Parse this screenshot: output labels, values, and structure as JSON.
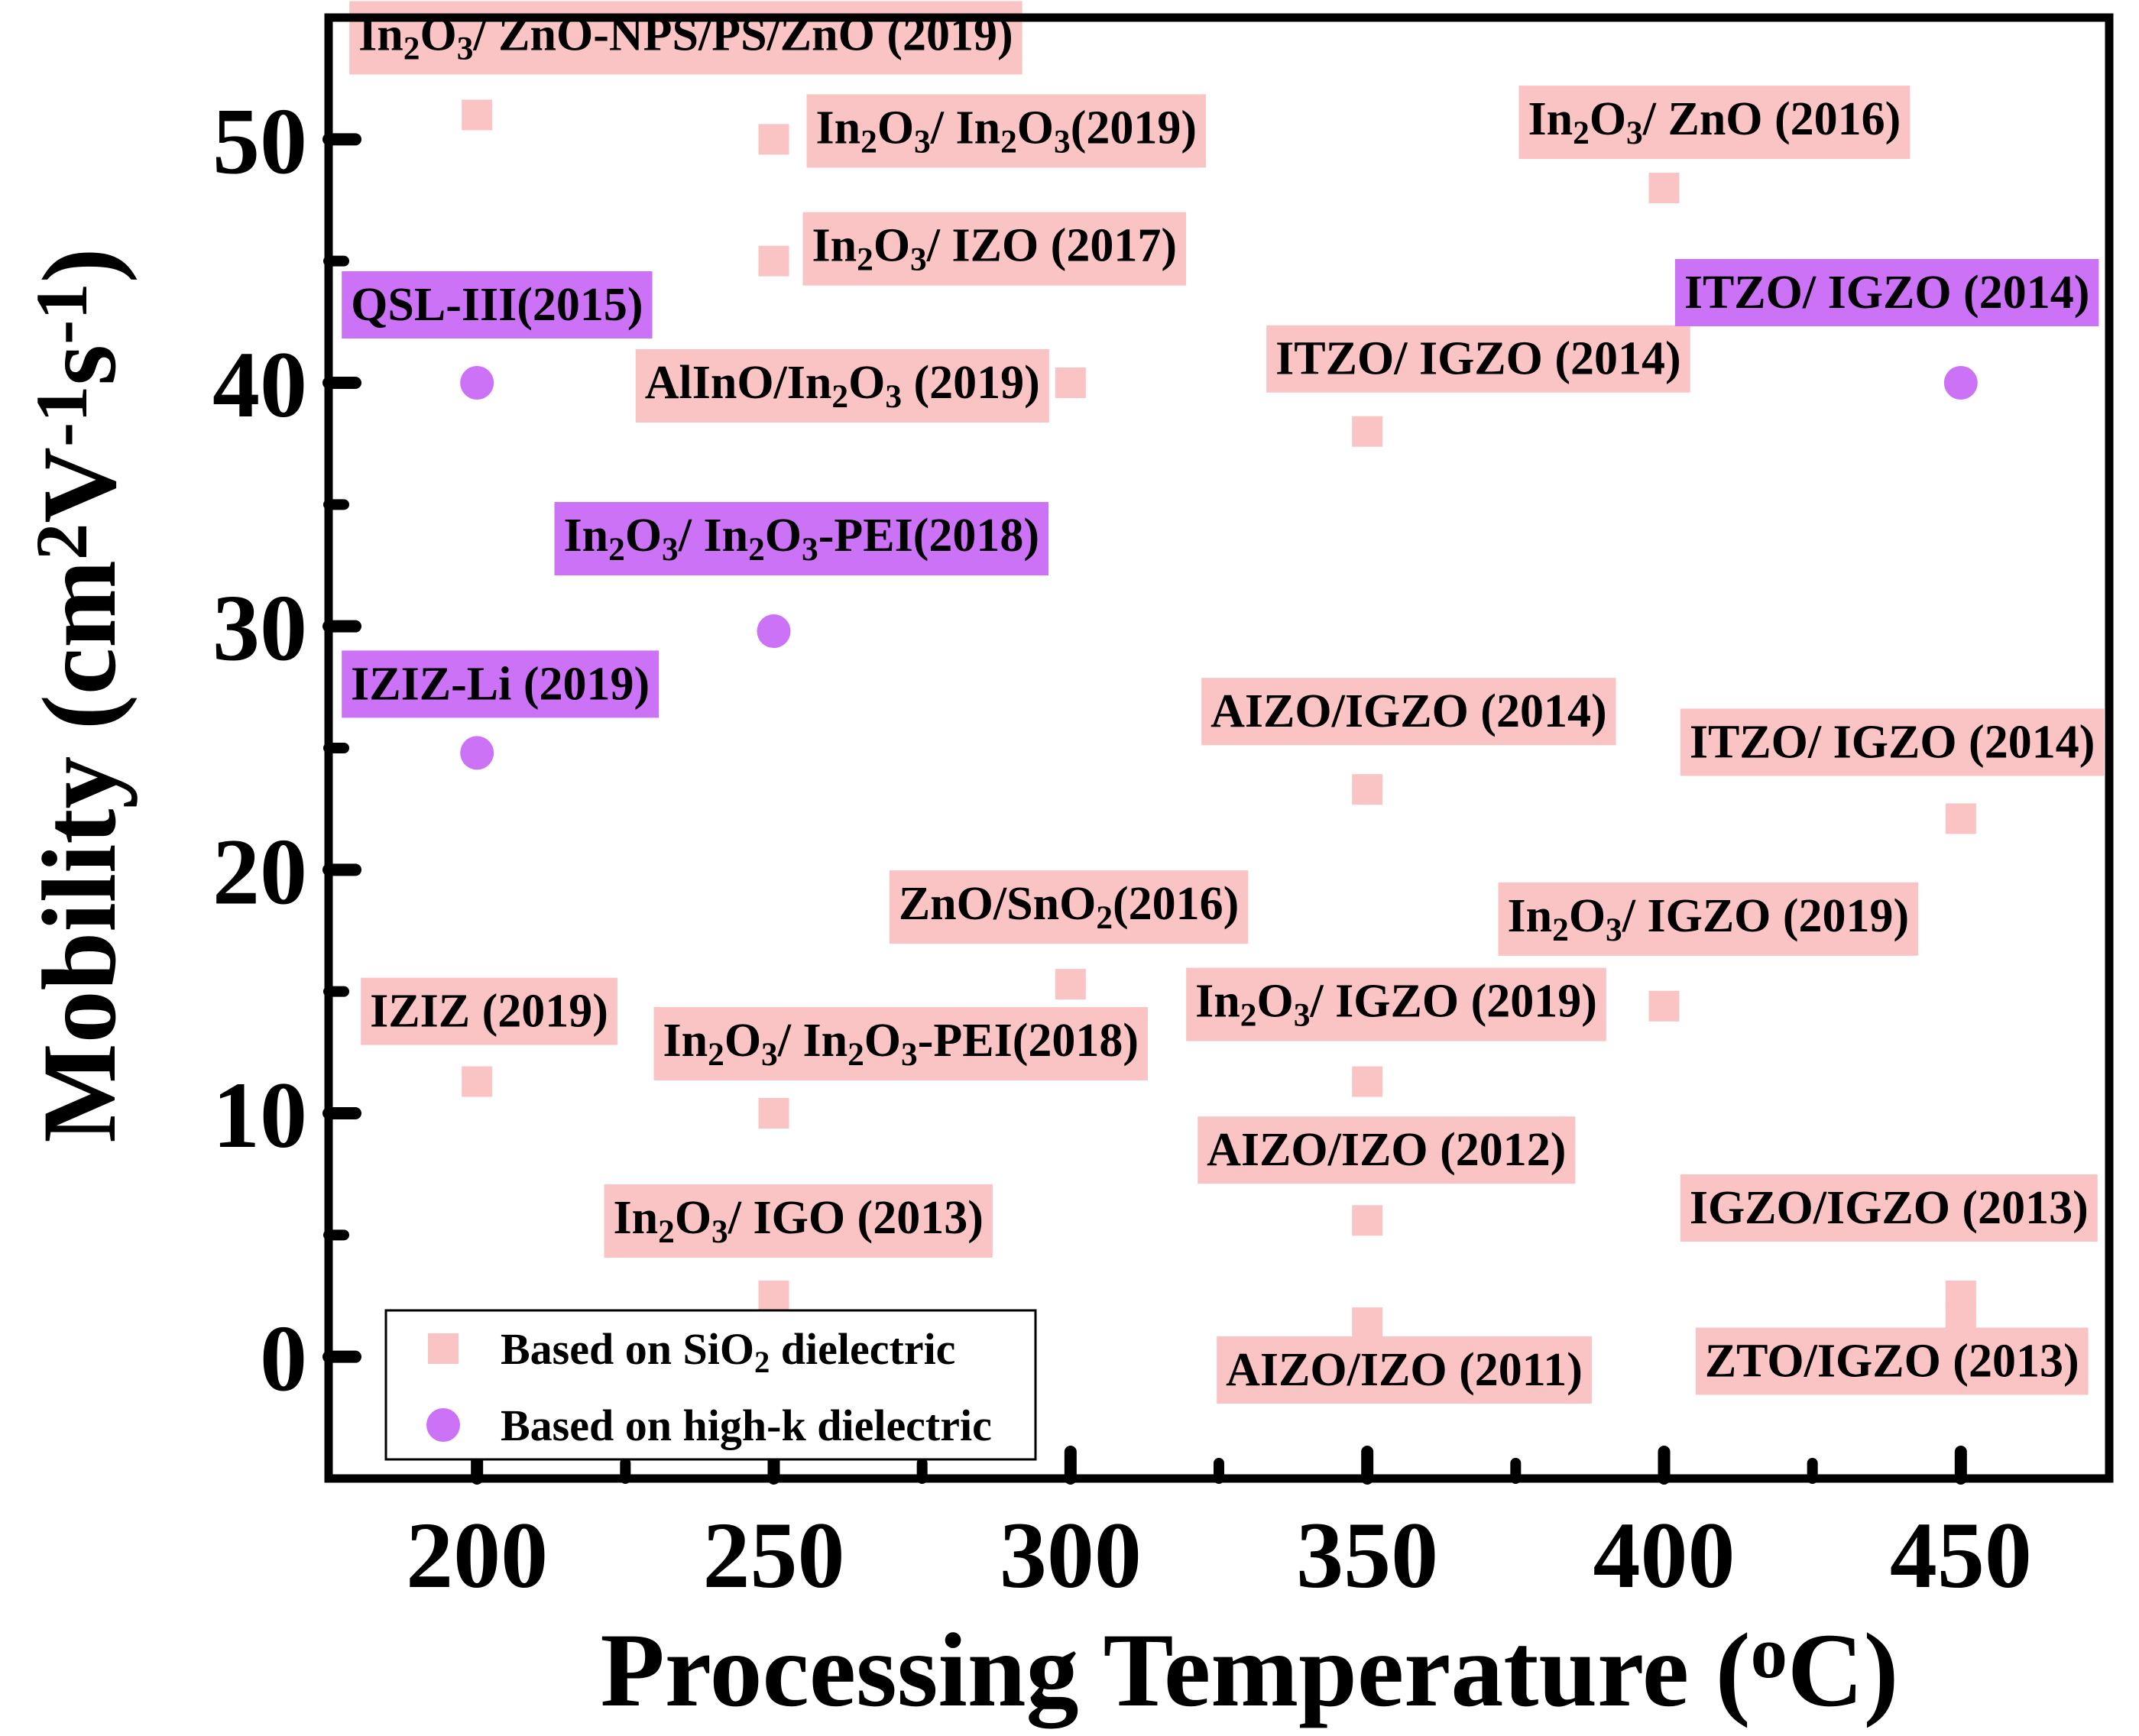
{
  "colors": {
    "sio2": "#fac4c4",
    "highk": "#cb72f6",
    "sio2_label_bg": "#fac4c4",
    "highk_label_bg": "#cb72f6"
  },
  "chart_data": {
    "type": "scatter",
    "xlabel": "Processing Temperature (oC)",
    "xlabel_parts": {
      "main": "Processing Temperature (",
      "sup": "o",
      "end": "C)"
    },
    "ylabel": "Mobility (cm2V-1s-1)",
    "ylabel_parts": [
      {
        "t": "Mobility (cm",
        "sup": false
      },
      {
        "t": "2",
        "sup": true
      },
      {
        "t": "V",
        "sup": false
      },
      {
        "t": "-1",
        "sup": true
      },
      {
        "t": "s",
        "sup": false
      },
      {
        "t": "-1",
        "sup": true
      },
      {
        "t": ")",
        "sup": false
      }
    ],
    "xlim": [
      175,
      475
    ],
    "ylim": [
      -5,
      55
    ],
    "x_ticks": [
      200,
      250,
      300,
      350,
      400,
      450
    ],
    "x_minor_ticks": [
      225,
      275,
      325,
      375,
      425
    ],
    "y_ticks": [
      0,
      10,
      20,
      30,
      40,
      50
    ],
    "y_minor_ticks": [
      5,
      15,
      25,
      35,
      45
    ],
    "legend": {
      "position": "bottom-left",
      "entries": [
        {
          "series": "sio2",
          "marker": "square",
          "parts": [
            {
              "t": "Based on SiO",
              "s": "n"
            },
            {
              "t": "2",
              "s": "sub"
            },
            {
              "t": " dielectric",
              "s": "n"
            }
          ]
        },
        {
          "series": "highk",
          "marker": "circle",
          "parts": [
            {
              "t": "Based on high-k dielectric",
              "s": "n"
            }
          ]
        }
      ]
    },
    "series": [
      {
        "name": "Based on SiO2 dielectric",
        "key": "sio2",
        "marker": "square",
        "points": [
          {
            "x": 200,
            "y": 51,
            "label": "In2O3/ ZnO-NPS/PS/ZnO (2019)",
            "parts": [
              {
                "t": "In",
                "s": "n"
              },
              {
                "t": "2",
                "s": "sub"
              },
              {
                "t": "O",
                "s": "n"
              },
              {
                "t": "3",
                "s": "sub"
              },
              {
                "t": "/ ZnO-NPS/PS/ZnO (2019)",
                "s": "n"
              }
            ]
          },
          {
            "x": 250,
            "y": 50,
            "label": "In2O3/ In2O3(2019)",
            "parts": [
              {
                "t": "In",
                "s": "n"
              },
              {
                "t": "2",
                "s": "sub"
              },
              {
                "t": "O",
                "s": "n"
              },
              {
                "t": "3",
                "s": "sub"
              },
              {
                "t": "/ In",
                "s": "n"
              },
              {
                "t": "2",
                "s": "sub"
              },
              {
                "t": "O",
                "s": "n"
              },
              {
                "t": "3",
                "s": "sub"
              },
              {
                "t": "(2019)",
                "s": "n"
              }
            ]
          },
          {
            "x": 250,
            "y": 45,
            "label": "In2O3/ IZO (2017)",
            "parts": [
              {
                "t": "In",
                "s": "n"
              },
              {
                "t": "2",
                "s": "sub"
              },
              {
                "t": "O",
                "s": "n"
              },
              {
                "t": "3",
                "s": "sub"
              },
              {
                "t": "/ IZO (2017)",
                "s": "n"
              }
            ]
          },
          {
            "x": 300,
            "y": 40,
            "label": "AlInO/In2O3 (2019)",
            "parts": [
              {
                "t": "AlInO/In",
                "s": "n"
              },
              {
                "t": "2",
                "s": "sub"
              },
              {
                "t": "O",
                "s": "n"
              },
              {
                "t": "3",
                "s": "sub"
              },
              {
                "t": " (2019)",
                "s": "n"
              }
            ]
          },
          {
            "x": 400,
            "y": 48,
            "label": "In2O3/ ZnO (2016)",
            "parts": [
              {
                "t": "In",
                "s": "n"
              },
              {
                "t": "2",
                "s": "sub"
              },
              {
                "t": "O",
                "s": "n"
              },
              {
                "t": "3",
                "s": "sub"
              },
              {
                "t": "/ ZnO (2016)",
                "s": "n"
              }
            ]
          },
          {
            "x": 350,
            "y": 38,
            "label": "ITZO/ IGZO (2014)",
            "parts": [
              {
                "t": "ITZO/ IGZO (2014)",
                "s": "n"
              }
            ]
          },
          {
            "x": 350,
            "y": 23.3,
            "label": "AIZO/IGZO (2014)",
            "parts": [
              {
                "t": "AIZO/IGZO (2014)",
                "s": "n"
              }
            ]
          },
          {
            "x": 450,
            "y": 22.1,
            "label": "ITZO/ IGZO (2014)",
            "parts": [
              {
                "t": "ITZO/ IGZO (2014)",
                "s": "n"
              }
            ]
          },
          {
            "x": 300,
            "y": 15.3,
            "label": "ZnO/SnO2(2016)",
            "parts": [
              {
                "t": "ZnO/SnO",
                "s": "n"
              },
              {
                "t": "2",
                "s": "sub"
              },
              {
                "t": "(2016)",
                "s": "n"
              }
            ]
          },
          {
            "x": 400,
            "y": 14.4,
            "label": "In2O3/ IGZO (2019)",
            "parts": [
              {
                "t": "In",
                "s": "n"
              },
              {
                "t": "2",
                "s": "sub"
              },
              {
                "t": "O",
                "s": "n"
              },
              {
                "t": "3",
                "s": "sub"
              },
              {
                "t": "/ IGZO (2019)",
                "s": "n"
              }
            ]
          },
          {
            "x": 350,
            "y": 11.3,
            "label": "In2O3/ IGZO (2019)",
            "parts": [
              {
                "t": "In",
                "s": "n"
              },
              {
                "t": "2",
                "s": "sub"
              },
              {
                "t": "O",
                "s": "n"
              },
              {
                "t": "3",
                "s": "sub"
              },
              {
                "t": "/ IGZO (2019)",
                "s": "n"
              }
            ]
          },
          {
            "x": 200,
            "y": 11.3,
            "label": "IZIZ (2019)",
            "parts": [
              {
                "t": "IZIZ (2019)",
                "s": "n"
              }
            ]
          },
          {
            "x": 250,
            "y": 10,
            "label": "In2O3/ In2O3-PEI(2018)",
            "parts": [
              {
                "t": "In",
                "s": "n"
              },
              {
                "t": "2",
                "s": "sub"
              },
              {
                "t": "O",
                "s": "n"
              },
              {
                "t": "3",
                "s": "sub"
              },
              {
                "t": "/ In",
                "s": "n"
              },
              {
                "t": "2",
                "s": "sub"
              },
              {
                "t": "O",
                "s": "n"
              },
              {
                "t": "3",
                "s": "sub"
              },
              {
                "t": "-PEI(2018)",
                "s": "n"
              }
            ]
          },
          {
            "x": 350,
            "y": 5.6,
            "label": "AIZO/IZO (2012)",
            "parts": [
              {
                "t": "AIZO/IZO (2012)",
                "s": "n"
              }
            ]
          },
          {
            "x": 250,
            "y": 2.5,
            "label": "In2O3/ IGO (2013)",
            "parts": [
              {
                "t": "In",
                "s": "n"
              },
              {
                "t": "2",
                "s": "sub"
              },
              {
                "t": "O",
                "s": "n"
              },
              {
                "t": "3",
                "s": "sub"
              },
              {
                "t": "/ IGO (2013)",
                "s": "n"
              }
            ]
          },
          {
            "x": 350,
            "y": 1.4,
            "label": "AIZO/IZO (2011)",
            "parts": [
              {
                "t": "AIZO/IZO (2011)",
                "s": "n"
              }
            ]
          },
          {
            "x": 450,
            "y": 2.5,
            "label": "IGZO/IGZO (2013)",
            "parts": [
              {
                "t": "IGZO/IGZO (2013)",
                "s": "n"
              }
            ]
          },
          {
            "x": 450,
            "y": 1.7,
            "label": "ZTO/IGZO (2013)",
            "parts": [
              {
                "t": "ZTO/IGZO (2013)",
                "s": "n"
              }
            ]
          }
        ]
      },
      {
        "name": "Based on high-k dielectric",
        "key": "highk",
        "marker": "circle",
        "points": [
          {
            "x": 200,
            "y": 40,
            "label": "QSL-III(2015)",
            "parts": [
              {
                "t": "QSL-III(2015)",
                "s": "n"
              }
            ]
          },
          {
            "x": 450,
            "y": 40,
            "label": "ITZO/ IGZO (2014)",
            "parts": [
              {
                "t": "ITZO/ IGZO (2014)",
                "s": "n"
              }
            ]
          },
          {
            "x": 250,
            "y": 29.8,
            "label": "In2O3/ In2O3-PEI(2018)",
            "parts": [
              {
                "t": "In",
                "s": "n"
              },
              {
                "t": "2",
                "s": "sub"
              },
              {
                "t": "O",
                "s": "n"
              },
              {
                "t": "3",
                "s": "sub"
              },
              {
                "t": "/ In",
                "s": "n"
              },
              {
                "t": "2",
                "s": "sub"
              },
              {
                "t": "O",
                "s": "n"
              },
              {
                "t": "3",
                "s": "sub"
              },
              {
                "t": "-PEI(2018)",
                "s": "n"
              }
            ]
          },
          {
            "x": 200,
            "y": 24.8,
            "label": "IZIZ-Li (2019)",
            "parts": [
              {
                "t": "IZIZ-Li (2019)",
                "s": "n"
              }
            ]
          }
        ]
      }
    ]
  }
}
